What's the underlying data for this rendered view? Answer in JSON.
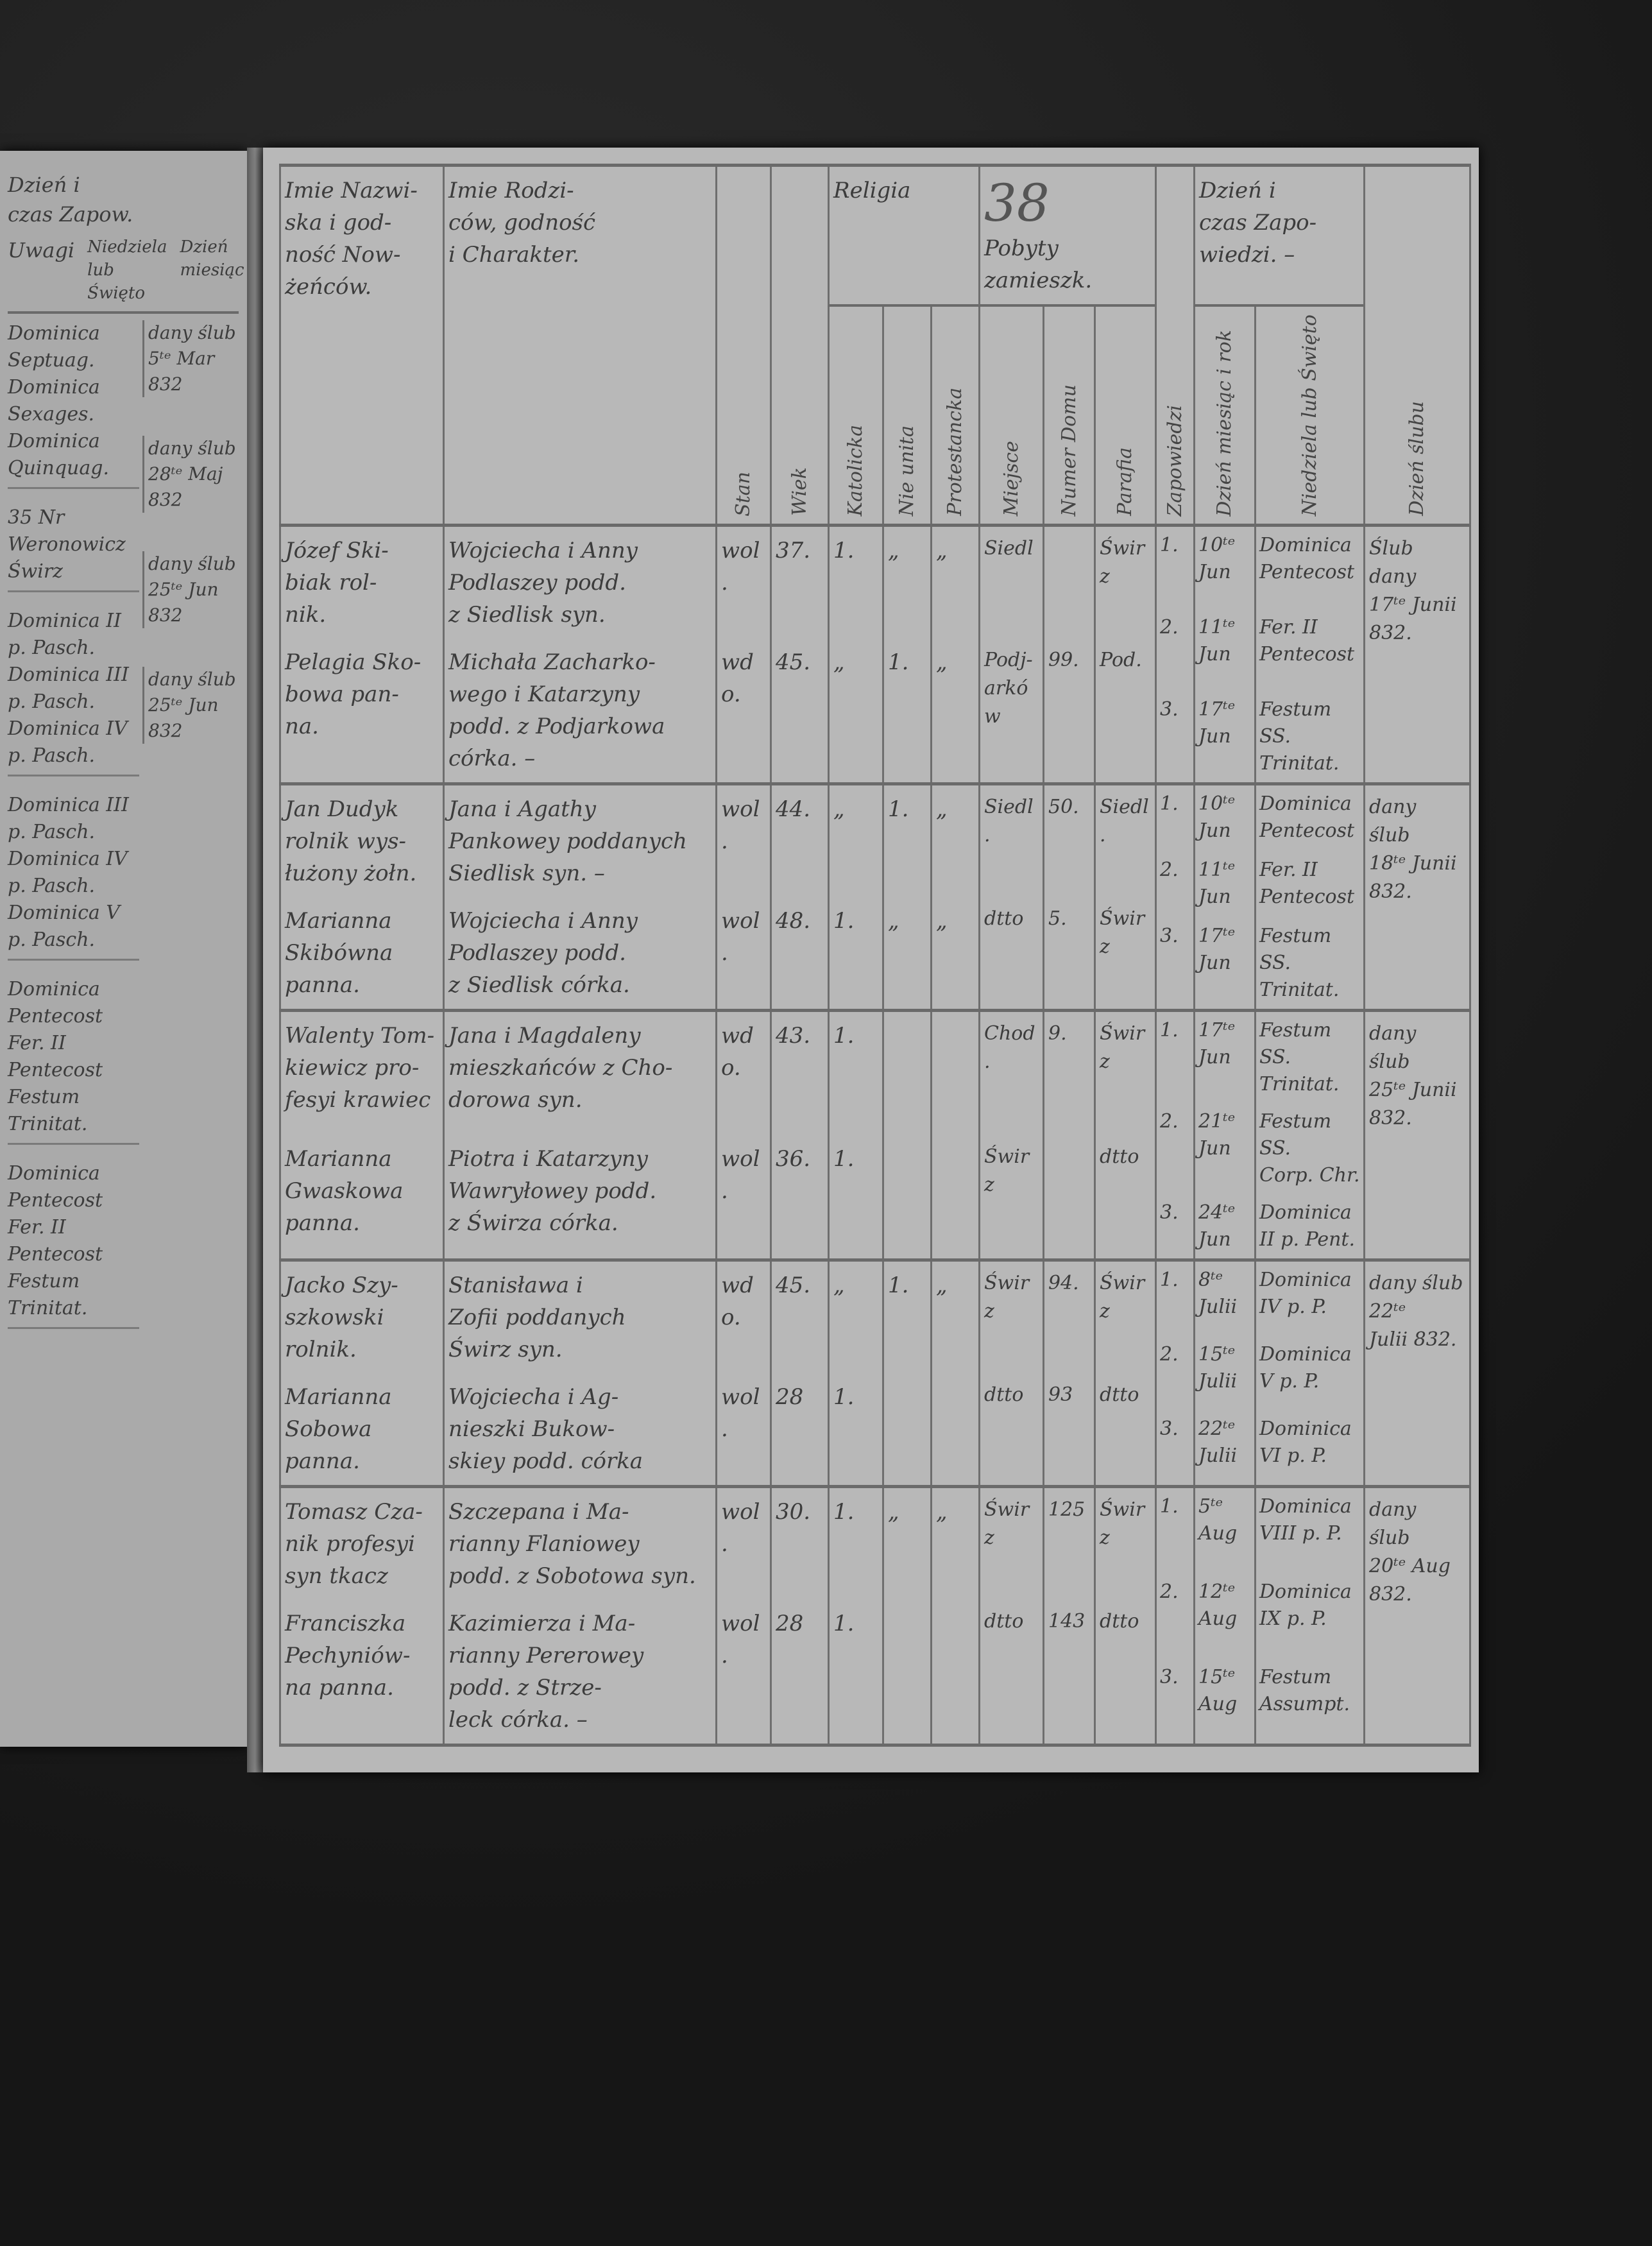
{
  "page_number": "38",
  "header": {
    "names": [
      "Imie Nazwi-",
      "ska i god-",
      "ność Now-",
      "żeńców."
    ],
    "parents": [
      "Imie Rodzi-",
      "ców, godność",
      "i Charakter."
    ],
    "status": "Stan",
    "age": "Wiek",
    "religion": "Religia",
    "religion_sub": [
      "Katolicka",
      "Nie unita",
      "Protestancka"
    ],
    "residence": [
      "Pobyty",
      "zamieszk."
    ],
    "residence_sub": [
      "Miejsce",
      "Numer Domu",
      "Parafia"
    ],
    "banns_count": "Zapowiedzi",
    "banns": [
      "Dzień i",
      "czas Zapo-",
      "wiedzi. –"
    ],
    "banns_sub": [
      "Dzień miesiąc i rok",
      "Niedziela lub Święto"
    ],
    "wedding": "Dzień ślubu"
  },
  "left_page": {
    "header": [
      "Dzień i",
      "czas Zapow."
    ],
    "remarks": "Uwagi",
    "sub": [
      "Niedziela lub Święto",
      "Dzień miesiąc"
    ],
    "entries": [
      [
        "Dominica",
        "Septuag.",
        "Dominica",
        "Sexages.",
        "Dominica",
        "Quinquag."
      ],
      [
        "35 Nr Weronowicz",
        "Świrz"
      ],
      [
        "Dominica II p. Pasch.",
        "Dominica III p. Pasch.",
        "Dominica IV p. Pasch."
      ],
      [
        "Dominica III p. Pasch.",
        "Dominica IV p. Pasch.",
        "Dominica V p. Pasch."
      ],
      [
        "Dominica Pentecost",
        "Fer. II Pentecost",
        "Festum Trinitat."
      ],
      [
        "Dominica Pentecost",
        "Fer. II Pentecost",
        "Festum Trinitat."
      ]
    ],
    "notes": [
      "dany ślub 5ᵗᵉ Mar 832",
      "dany ślub 28ᵗᵉ Maj 832",
      "dany ślub 25ᵗᵉ Jun 832",
      "dany ślub 25ᵗᵉ Jun 832"
    ]
  },
  "rows": [
    {
      "groom": {
        "name": [
          "Józef Ski-",
          "biak rol-",
          "nik."
        ],
        "parents": [
          "Wojciecha i Anny",
          "Podlaszey podd.",
          "z Siedlisk syn."
        ],
        "status": "wol.",
        "age": "37.",
        "religion": [
          "1.",
          "„",
          "„"
        ],
        "place": [
          "Siedl"
        ],
        "house": "",
        "parish": "Świrz"
      },
      "bride": {
        "name": [
          "Pelagia Sko-",
          "bowa pan-",
          "na."
        ],
        "parents": [
          "Michała Zacharko-",
          "wego i Katarzyny",
          "podd. z Podjarkowa",
          "córka. –"
        ],
        "status": "wdo.",
        "age": "45.",
        "religion": [
          "„",
          "1.",
          "„"
        ],
        "place": [
          "Podj-",
          "arków"
        ],
        "house": "99.",
        "parish": "Pod."
      },
      "banns": [
        {
          "no": "1.",
          "date": [
            "10ᵗᵉ",
            "Jun"
          ],
          "day": [
            "Dominica",
            "Pentecost"
          ]
        },
        {
          "no": "2.",
          "date": [
            "11ᵗᵉ",
            "Jun"
          ],
          "day": [
            "Fer. II",
            "Pentecost"
          ]
        },
        {
          "no": "3.",
          "date": [
            "17ᵗᵉ",
            "Jun"
          ],
          "day": [
            "Festum SS.",
            "Trinitat."
          ]
        }
      ],
      "wedding": [
        "Ślub",
        "dany",
        "17ᵗᵉ Junii",
        "832."
      ]
    },
    {
      "groom": {
        "name": [
          "Jan Dudyk",
          "rolnik wys-",
          "łużony żołn."
        ],
        "parents": [
          "Jana i Agathy",
          "Pankowey poddanych",
          "Siedlisk syn. –"
        ],
        "status": "wol.",
        "age": "44.",
        "religion": [
          "„",
          "1.",
          "„"
        ],
        "place": [
          "Siedl."
        ],
        "house": "50.",
        "parish": "Siedl."
      },
      "bride": {
        "name": [
          "Marianna",
          "Skibówna",
          "panna."
        ],
        "parents": [
          "Wojciecha i Anny",
          "Podlaszey podd.",
          "z Siedlisk córka."
        ],
        "status": "wol.",
        "age": "48.",
        "religion": [
          "1.",
          "„",
          "„"
        ],
        "place": [
          "dtto"
        ],
        "house": "5.",
        "parish": "Świrz"
      },
      "banns": [
        {
          "no": "1.",
          "date": [
            "10ᵗᵉ",
            "Jun"
          ],
          "day": [
            "Dominica",
            "Pentecost"
          ]
        },
        {
          "no": "2.",
          "date": [
            "11ᵗᵉ",
            "Jun"
          ],
          "day": [
            "Fer. II",
            "Pentecost"
          ]
        },
        {
          "no": "3.",
          "date": [
            "17ᵗᵉ",
            "Jun"
          ],
          "day": [
            "Festum SS.",
            "Trinitat."
          ]
        }
      ],
      "wedding": [
        "dany",
        "ślub",
        "18ᵗᵉ Junii",
        "832."
      ]
    },
    {
      "groom": {
        "name": [
          "Walenty Tom-",
          "kiewicz pro-",
          "fesyi krawiec"
        ],
        "parents": [
          "Jana i Magdaleny",
          "mieszkańców z Cho-",
          "dorowa syn."
        ],
        "status": "wdo.",
        "age": "43.",
        "religion": [
          "1.",
          "",
          ""
        ],
        "place": [
          "Chod."
        ],
        "house": "9.",
        "parish": "Świrz"
      },
      "bride": {
        "name": [
          "Marianna",
          "Gwaskowa",
          "panna."
        ],
        "parents": [
          "Piotra i Katarzyny",
          "Wawryłowey podd.",
          "z Świrza córka."
        ],
        "status": "wol.",
        "age": "36.",
        "religion": [
          "1.",
          "",
          ""
        ],
        "place": [
          "Świrz"
        ],
        "house": "",
        "parish": "dtto"
      },
      "banns": [
        {
          "no": "1.",
          "date": [
            "17ᵗᵉ",
            "Jun"
          ],
          "day": [
            "Festum SS.",
            "Trinitat."
          ]
        },
        {
          "no": "2.",
          "date": [
            "21ᵗᵉ",
            "Jun"
          ],
          "day": [
            "Festum SS.",
            "Corp. Chr."
          ]
        },
        {
          "no": "3.",
          "date": [
            "24ᵗᵉ",
            "Jun"
          ],
          "day": [
            "Dominica",
            "II p. Pent."
          ]
        }
      ],
      "wedding": [
        "dany",
        "ślub",
        "25ᵗᵉ Junii",
        "832."
      ]
    },
    {
      "groom": {
        "name": [
          "Jacko Szy-",
          "szkowski",
          "rolnik."
        ],
        "parents": [
          "Stanisława i",
          "Zofii poddanych",
          "Świrz syn."
        ],
        "status": "wdo.",
        "age": "45.",
        "religion": [
          "„",
          "1.",
          "„"
        ],
        "place": [
          "Świrz"
        ],
        "house": "94.",
        "parish": "Świrz"
      },
      "bride": {
        "name": [
          "Marianna",
          "Sobowa",
          "panna."
        ],
        "parents": [
          "Wojciecha i Ag-",
          "nieszki Bukow-",
          "skiey podd. córka"
        ],
        "status": "wol.",
        "age": "28",
        "religion": [
          "1.",
          "",
          ""
        ],
        "place": [
          "dtto"
        ],
        "house": "93",
        "parish": "dtto"
      },
      "banns": [
        {
          "no": "1.",
          "date": [
            "8ᵗᵉ",
            "Julii"
          ],
          "day": [
            "Dominica",
            "IV p. P."
          ]
        },
        {
          "no": "2.",
          "date": [
            "15ᵗᵉ",
            "Julii"
          ],
          "day": [
            "Dominica",
            "V p. P."
          ]
        },
        {
          "no": "3.",
          "date": [
            "22ᵗᵉ",
            "Julii"
          ],
          "day": [
            "Dominica",
            "VI p. P."
          ]
        }
      ],
      "wedding": [
        "dany ślub",
        "22ᵗᵉ",
        "Julii 832."
      ]
    },
    {
      "groom": {
        "name": [
          "Tomasz Cza-",
          "nik profesyi",
          "syn tkacz"
        ],
        "parents": [
          "Szczepana i Ma-",
          "rianny Flaniowey",
          "podd. z Sobotowa syn."
        ],
        "status": "wol.",
        "age": "30.",
        "religion": [
          "1.",
          "„",
          "„"
        ],
        "place": [
          "Świrz"
        ],
        "house": "125",
        "parish": "Świrz"
      },
      "bride": {
        "name": [
          "Franciszka",
          "Pechyniów-",
          "na panna."
        ],
        "parents": [
          "Kazimierza i Ma-",
          "rianny Pererowey",
          "podd. z Strze-",
          "leck córka. –"
        ],
        "status": "wol.",
        "age": "28",
        "religion": [
          "1.",
          "",
          ""
        ],
        "place": [
          "dtto"
        ],
        "house": "143",
        "parish": "dtto"
      },
      "banns": [
        {
          "no": "1.",
          "date": [
            "5ᵗᵉ",
            "Aug"
          ],
          "day": [
            "Dominica",
            "VIII p. P."
          ]
        },
        {
          "no": "2.",
          "date": [
            "12ᵗᵉ",
            "Aug"
          ],
          "day": [
            "Dominica",
            "IX p. P."
          ]
        },
        {
          "no": "3.",
          "date": [
            "15ᵗᵉ",
            "Aug"
          ],
          "day": [
            "Festum",
            "Assumpt."
          ]
        }
      ],
      "wedding": [
        "dany",
        "ślub",
        "20ᵗᵉ Aug",
        "832."
      ]
    }
  ]
}
